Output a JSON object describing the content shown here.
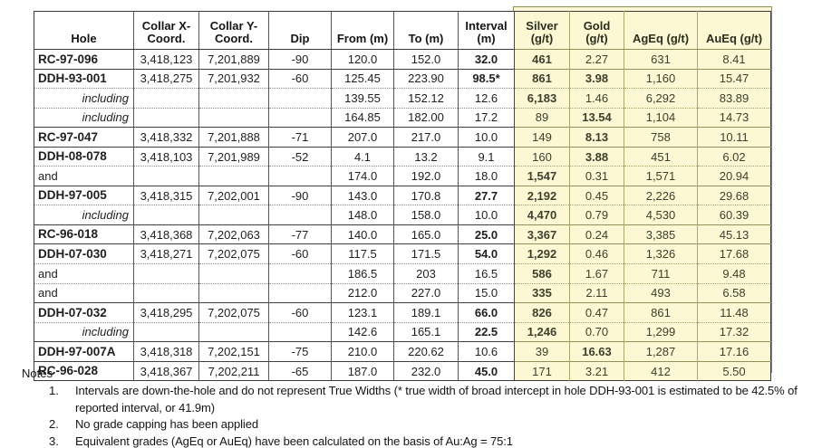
{
  "colors": {
    "highlight_bg": "#FBF8D3",
    "highlight_border": "#8F8F55",
    "grid_border": "#3A3A3A"
  },
  "table": {
    "headers": [
      {
        "id": "hole",
        "label": "Hole"
      },
      {
        "id": "collar_x",
        "label": "Collar X-\nCoord."
      },
      {
        "id": "collar_y",
        "label": "Collar Y-\nCoord."
      },
      {
        "id": "dip",
        "label": "Dip"
      },
      {
        "id": "from_m",
        "label": "From (m)"
      },
      {
        "id": "to_m",
        "label": "To (m)"
      },
      {
        "id": "interval_m",
        "label": "Interval\n(m)"
      },
      {
        "id": "silver_gpt",
        "label": "Silver\n(g/t)"
      },
      {
        "id": "gold_gpt",
        "label": "Gold\n(g/t)"
      },
      {
        "id": "ageq_gpt",
        "label": "AgEq (g/t)"
      },
      {
        "id": "aueq_gpt",
        "label": "AuEq (g/t)"
      }
    ],
    "rows": [
      {
        "label": "RC-97-096",
        "label_style": "main",
        "collar_x": "3,418,123",
        "collar_y": "7,201,889",
        "dip": "-90",
        "from_m": "120.0",
        "to_m": "152.0",
        "interval_m": "32.0",
        "silver_gpt": "461",
        "gold_gpt": "2.27",
        "ageq_gpt": "631",
        "aueq_gpt": "8.41",
        "bold": [
          "interval_m",
          "silver_gpt"
        ]
      },
      {
        "label": "DDH-93-001",
        "label_style": "main",
        "collar_x": "3,418,275",
        "collar_y": "7,201,932",
        "dip": "-60",
        "from_m": "125.45",
        "to_m": "223.90",
        "interval_m": "98.5*",
        "silver_gpt": "861",
        "gold_gpt": "3.98",
        "ageq_gpt": "1,160",
        "aueq_gpt": "15.47",
        "bold": [
          "interval_m",
          "silver_gpt",
          "gold_gpt"
        ]
      },
      {
        "label": "including",
        "label_style": "including",
        "collar_x": "",
        "collar_y": "",
        "dip": "",
        "from_m": "139.55",
        "to_m": "152.12",
        "interval_m": "12.6",
        "silver_gpt": "6,183",
        "gold_gpt": "1.46",
        "ageq_gpt": "6,292",
        "aueq_gpt": "83.89",
        "bold": [
          "silver_gpt"
        ]
      },
      {
        "label": "including",
        "label_style": "including",
        "collar_x": "",
        "collar_y": "",
        "dip": "",
        "from_m": "164.85",
        "to_m": "182.00",
        "interval_m": "17.2",
        "silver_gpt": "89",
        "gold_gpt": "13.54",
        "ageq_gpt": "1,104",
        "aueq_gpt": "14.73",
        "bold": [
          "gold_gpt"
        ]
      },
      {
        "label": "RC-97-047",
        "label_style": "main",
        "collar_x": "3,418,332",
        "collar_y": "7,201,888",
        "dip": "-71",
        "from_m": "207.0",
        "to_m": "217.0",
        "interval_m": "10.0",
        "silver_gpt": "149",
        "gold_gpt": "8.13",
        "ageq_gpt": "758",
        "aueq_gpt": "10.11",
        "bold": [
          "gold_gpt"
        ]
      },
      {
        "label": "DDH-08-078",
        "label_style": "main",
        "collar_x": "3,418,103",
        "collar_y": "7,201,989",
        "dip": "-52",
        "from_m": "4.1",
        "to_m": "13.2",
        "interval_m": "9.1",
        "silver_gpt": "160",
        "gold_gpt": "3.88",
        "ageq_gpt": "451",
        "aueq_gpt": "6.02",
        "bold": [
          "gold_gpt"
        ]
      },
      {
        "label": "and",
        "label_style": "and",
        "collar_x": "",
        "collar_y": "",
        "dip": "",
        "from_m": "174.0",
        "to_m": "192.0",
        "interval_m": "18.0",
        "silver_gpt": "1,547",
        "gold_gpt": "0.31",
        "ageq_gpt": "1,571",
        "aueq_gpt": "20.94",
        "bold": [
          "silver_gpt"
        ]
      },
      {
        "label": "DDH-97-005",
        "label_style": "main",
        "collar_x": "3,418,315",
        "collar_y": "7,202,001",
        "dip": "-90",
        "from_m": "143.0",
        "to_m": "170.8",
        "interval_m": "27.7",
        "silver_gpt": "2,192",
        "gold_gpt": "0.45",
        "ageq_gpt": "2,226",
        "aueq_gpt": "29.68",
        "bold": [
          "interval_m",
          "silver_gpt"
        ]
      },
      {
        "label": "including",
        "label_style": "including",
        "collar_x": "",
        "collar_y": "",
        "dip": "",
        "from_m": "148.0",
        "to_m": "158.0",
        "interval_m": "10.0",
        "silver_gpt": "4,470",
        "gold_gpt": "0.79",
        "ageq_gpt": "4,530",
        "aueq_gpt": "60.39",
        "bold": [
          "silver_gpt"
        ]
      },
      {
        "label": "RC-96-018",
        "label_style": "main",
        "collar_x": "3,418,368",
        "collar_y": "7,202,063",
        "dip": "-77",
        "from_m": "140.0",
        "to_m": "165.0",
        "interval_m": "25.0",
        "silver_gpt": "3,367",
        "gold_gpt": "0.24",
        "ageq_gpt": "3,385",
        "aueq_gpt": "45.13",
        "bold": [
          "interval_m",
          "silver_gpt"
        ]
      },
      {
        "label": "DDH-07-030",
        "label_style": "main",
        "collar_x": "3,418,271",
        "collar_y": "7,202,075",
        "dip": "-60",
        "from_m": "117.5",
        "to_m": "171.5",
        "interval_m": "54.0",
        "silver_gpt": "1,292",
        "gold_gpt": "0.46",
        "ageq_gpt": "1,326",
        "aueq_gpt": "17.68",
        "bold": [
          "interval_m",
          "silver_gpt"
        ]
      },
      {
        "label": "and",
        "label_style": "and",
        "collar_x": "",
        "collar_y": "",
        "dip": "",
        "from_m": "186.5",
        "to_m": "203",
        "interval_m": "16.5",
        "silver_gpt": "586",
        "gold_gpt": "1.67",
        "ageq_gpt": "711",
        "aueq_gpt": "9.48",
        "bold": [
          "silver_gpt"
        ]
      },
      {
        "label": "and",
        "label_style": "and",
        "collar_x": "",
        "collar_y": "",
        "dip": "",
        "from_m": "212.0",
        "to_m": "227.0",
        "interval_m": "15.0",
        "silver_gpt": "335",
        "gold_gpt": "2.11",
        "ageq_gpt": "493",
        "aueq_gpt": "6.58",
        "bold": [
          "silver_gpt"
        ]
      },
      {
        "label": "DDH-07-032",
        "label_style": "main",
        "collar_x": "3,418,295",
        "collar_y": "7,202,075",
        "dip": "-60",
        "from_m": "123.1",
        "to_m": "189.1",
        "interval_m": "66.0",
        "silver_gpt": "826",
        "gold_gpt": "0.47",
        "ageq_gpt": "861",
        "aueq_gpt": "11.48",
        "bold": [
          "interval_m",
          "silver_gpt"
        ]
      },
      {
        "label": "including",
        "label_style": "including",
        "collar_x": "",
        "collar_y": "",
        "dip": "",
        "from_m": "142.6",
        "to_m": "165.1",
        "interval_m": "22.5",
        "silver_gpt": "1,246",
        "gold_gpt": "0.70",
        "ageq_gpt": "1,299",
        "aueq_gpt": "17.32",
        "bold": [
          "interval_m",
          "silver_gpt"
        ]
      },
      {
        "label": "DDH-97-007A",
        "label_style": "main",
        "collar_x": "3,418,318",
        "collar_y": "7,202,151",
        "dip": "-75",
        "from_m": "210.0",
        "to_m": "220.62",
        "interval_m": "10.6",
        "silver_gpt": "39",
        "gold_gpt": "16.63",
        "ageq_gpt": "1,287",
        "aueq_gpt": "17.16",
        "bold": [
          "gold_gpt"
        ]
      },
      {
        "label": "RC-96-028",
        "label_style": "main",
        "collar_x": "3,418,367",
        "collar_y": "7,202,211",
        "dip": "-65",
        "from_m": "187.0",
        "to_m": "232.0",
        "interval_m": "45.0",
        "silver_gpt": "171",
        "gold_gpt": "3.21",
        "ageq_gpt": "412",
        "aueq_gpt": "5.50",
        "bold": [
          "interval_m"
        ]
      }
    ]
  },
  "notes": {
    "title": "Notes",
    "items": [
      {
        "num": "1.",
        "text": "Intervals are down-the-hole and do not represent True Widths (* true width of broad intercept in hole DDH-93-001 is estimated to be 42.5% of reported interval, or 41.9m)"
      },
      {
        "num": "2.",
        "text": "No grade capping has been applied"
      },
      {
        "num": "3.",
        "text": "Equivalent grades (AgEq or AuEq) have been calculated on the basis of Au:Ag = 75:1"
      }
    ]
  }
}
